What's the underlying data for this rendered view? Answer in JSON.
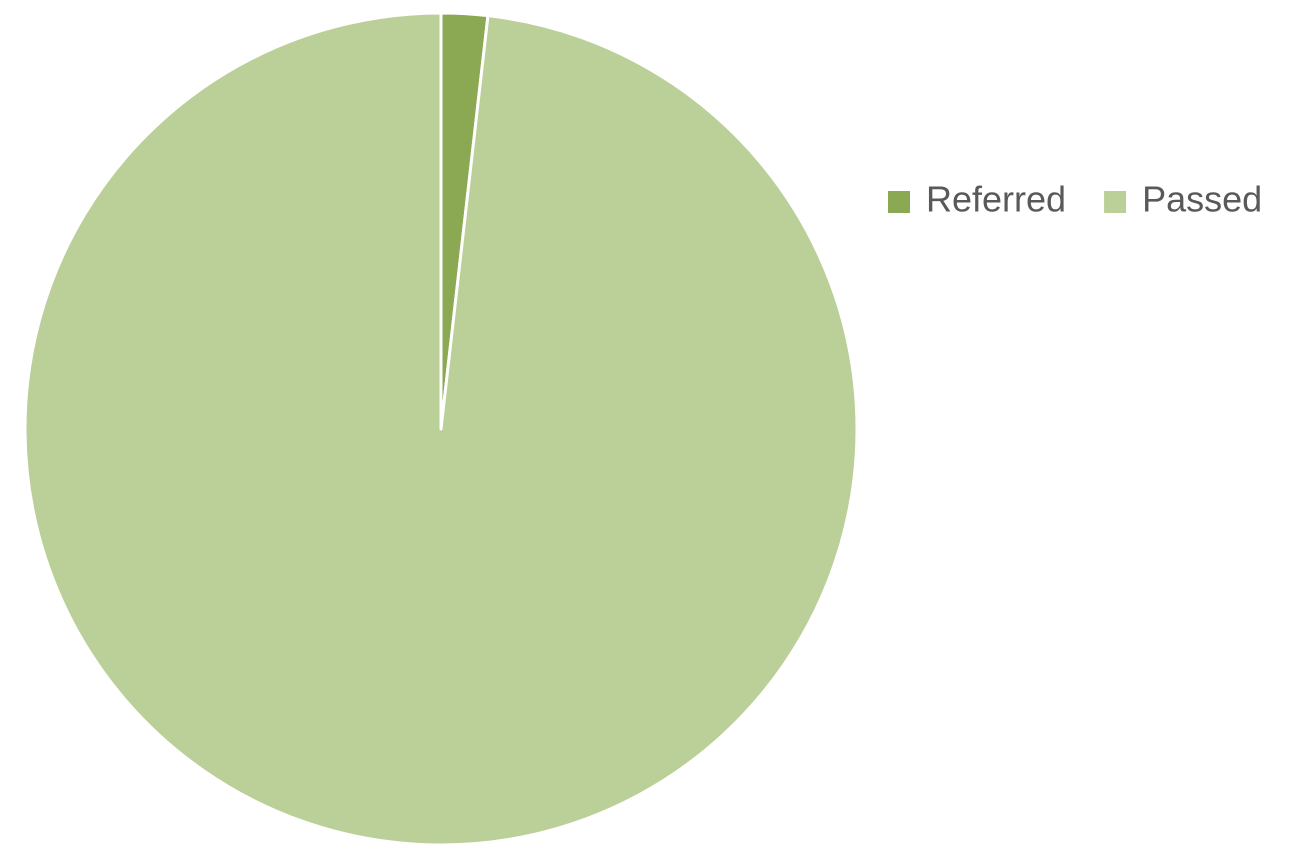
{
  "chart_data": {
    "type": "pie",
    "categories": [
      "Referred",
      "Passed"
    ],
    "values": [
      1.8,
      98.2
    ],
    "colors": [
      "#8ba852",
      "#bbcf98"
    ],
    "legend": "right"
  }
}
